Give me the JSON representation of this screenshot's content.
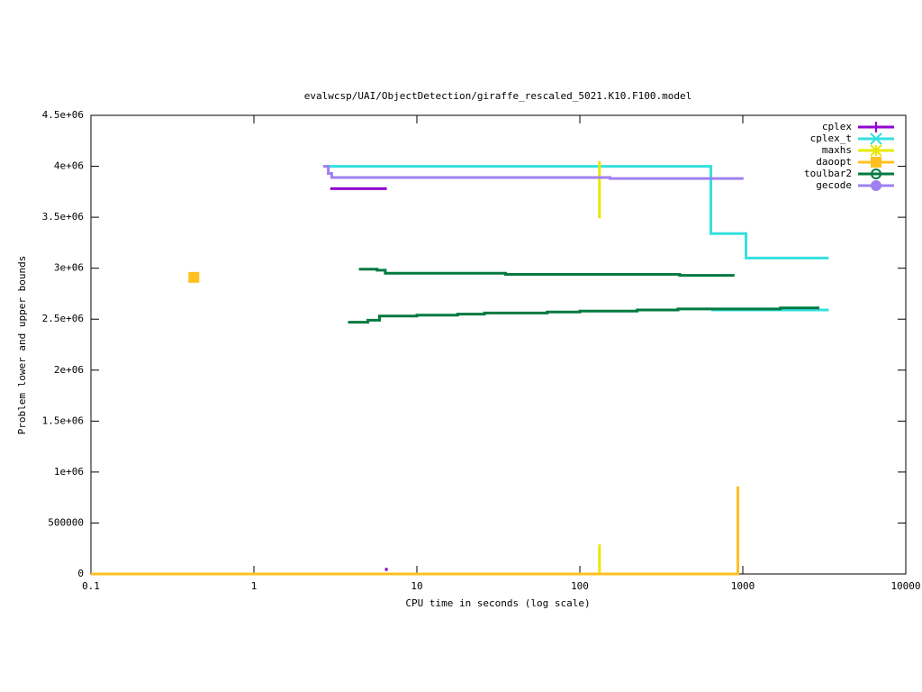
{
  "chart_data": {
    "type": "line",
    "title": "evalwcsp/UAI/ObjectDetection/giraffe_rescaled_5021.K10.F100.model",
    "x_label": "CPU time in seconds (log scale)",
    "y_label": "Problem lower and upper bounds",
    "xscale": "log",
    "xlim": [
      0.1,
      10000
    ],
    "xticks": [
      0.1,
      1,
      10,
      100,
      1000,
      10000
    ],
    "ylim": [
      0,
      4500000
    ],
    "yticks": [
      0,
      500000,
      {
        "value": 1000000,
        "label": "1e+06"
      },
      {
        "value": 1500000,
        "label": "1.5e+06"
      },
      {
        "value": 2000000,
        "label": "2e+06"
      },
      {
        "value": 2500000,
        "label": "2.5e+06"
      },
      {
        "value": 3000000,
        "label": "3e+06"
      },
      {
        "value": 3500000,
        "label": "3.5e+06"
      },
      {
        "value": 4000000,
        "label": "4e+06"
      },
      {
        "value": 4500000,
        "label": "4.5e+06"
      }
    ],
    "legend": "top-right",
    "series": [
      {
        "name": "cplex",
        "color": "#9400d3",
        "point": "plus",
        "x": [
          2.94,
          6.54,
          null,
          6.5,
          6.5
        ],
        "values": [
          3780000,
          3780000,
          null,
          30000,
          60000
        ]
      },
      {
        "name": "cplex_t",
        "color": "#33e0e0",
        "point": "cross",
        "x": [
          2.76,
          637,
          637,
          1045,
          1045,
          3360,
          null,
          640,
          3360
        ],
        "values": [
          4000000,
          4000000,
          3340000,
          3340000,
          3100000,
          3100000,
          null,
          2590000,
          2590000
        ]
      },
      {
        "name": "maxhs",
        "color": "#e8e800",
        "point": "star",
        "x": [
          132,
          132,
          null,
          132,
          132
        ],
        "values": [
          4050000,
          3490000,
          null,
          0,
          290000
        ]
      },
      {
        "name": "daoopt",
        "color": "#ffc020",
        "point": "square",
        "x": [
          0.428,
          null,
          0.1,
          933,
          933
        ],
        "values": [
          2910000,
          null,
          0,
          0,
          860000
        ]
      },
      {
        "name": "toulbar2",
        "color": "#007a40",
        "point": "circle-open",
        "x": [
          4.41,
          5.7,
          5.7,
          6.4,
          6.4,
          35,
          35,
          410,
          410,
          890,
          null,
          3.78,
          5.0,
          5.0,
          5.9,
          5.9,
          10,
          10,
          17.8,
          17.8,
          26,
          26,
          63,
          63,
          100,
          100,
          225,
          225,
          400,
          400,
          1700,
          1700,
          2950
        ],
        "values": [
          2990000,
          2990000,
          2980000,
          2980000,
          2950000,
          2950000,
          2940000,
          2940000,
          2930000,
          2930000,
          null,
          2470000,
          2470000,
          2490000,
          2490000,
          2530000,
          2530000,
          2540000,
          2540000,
          2550000,
          2550000,
          2560000,
          2560000,
          2570000,
          2570000,
          2580000,
          2580000,
          2590000,
          2590000,
          2600000,
          2600000,
          2610000,
          2610000
        ]
      },
      {
        "name": "gecode",
        "color": "#a080f0",
        "point": "circle",
        "x": [
          2.66,
          2.86,
          2.86,
          3.0,
          3.0,
          153,
          153,
          1010
        ],
        "values": [
          4000000,
          4000000,
          3930000,
          3930000,
          3890000,
          3890000,
          3880000,
          3880000
        ]
      }
    ]
  }
}
